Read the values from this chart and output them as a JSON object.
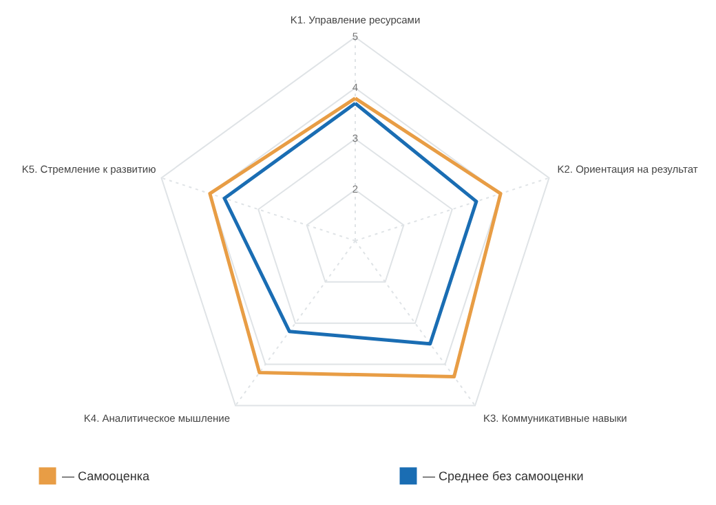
{
  "chart_data": {
    "type": "radar",
    "categories": [
      "K1. Управление ресурсами",
      "K2. Ориентация на результат",
      "K3. Коммуникативные навыки",
      "K4. Аналитическое мышление",
      "K5. Стремление к развитию"
    ],
    "series": [
      {
        "name": "— Самооценка",
        "color": "#e89d45",
        "values": [
          3.8,
          4.0,
          4.3,
          4.2,
          4.0
        ]
      },
      {
        "name": "— Среднее без самооценки",
        "color": "#1a6db3",
        "values": [
          3.7,
          3.5,
          3.5,
          3.2,
          3.7
        ]
      }
    ],
    "ylim": [
      1,
      5
    ],
    "yticks": [
      2,
      3,
      4,
      5
    ],
    "grid": true,
    "legend": "bottom"
  }
}
